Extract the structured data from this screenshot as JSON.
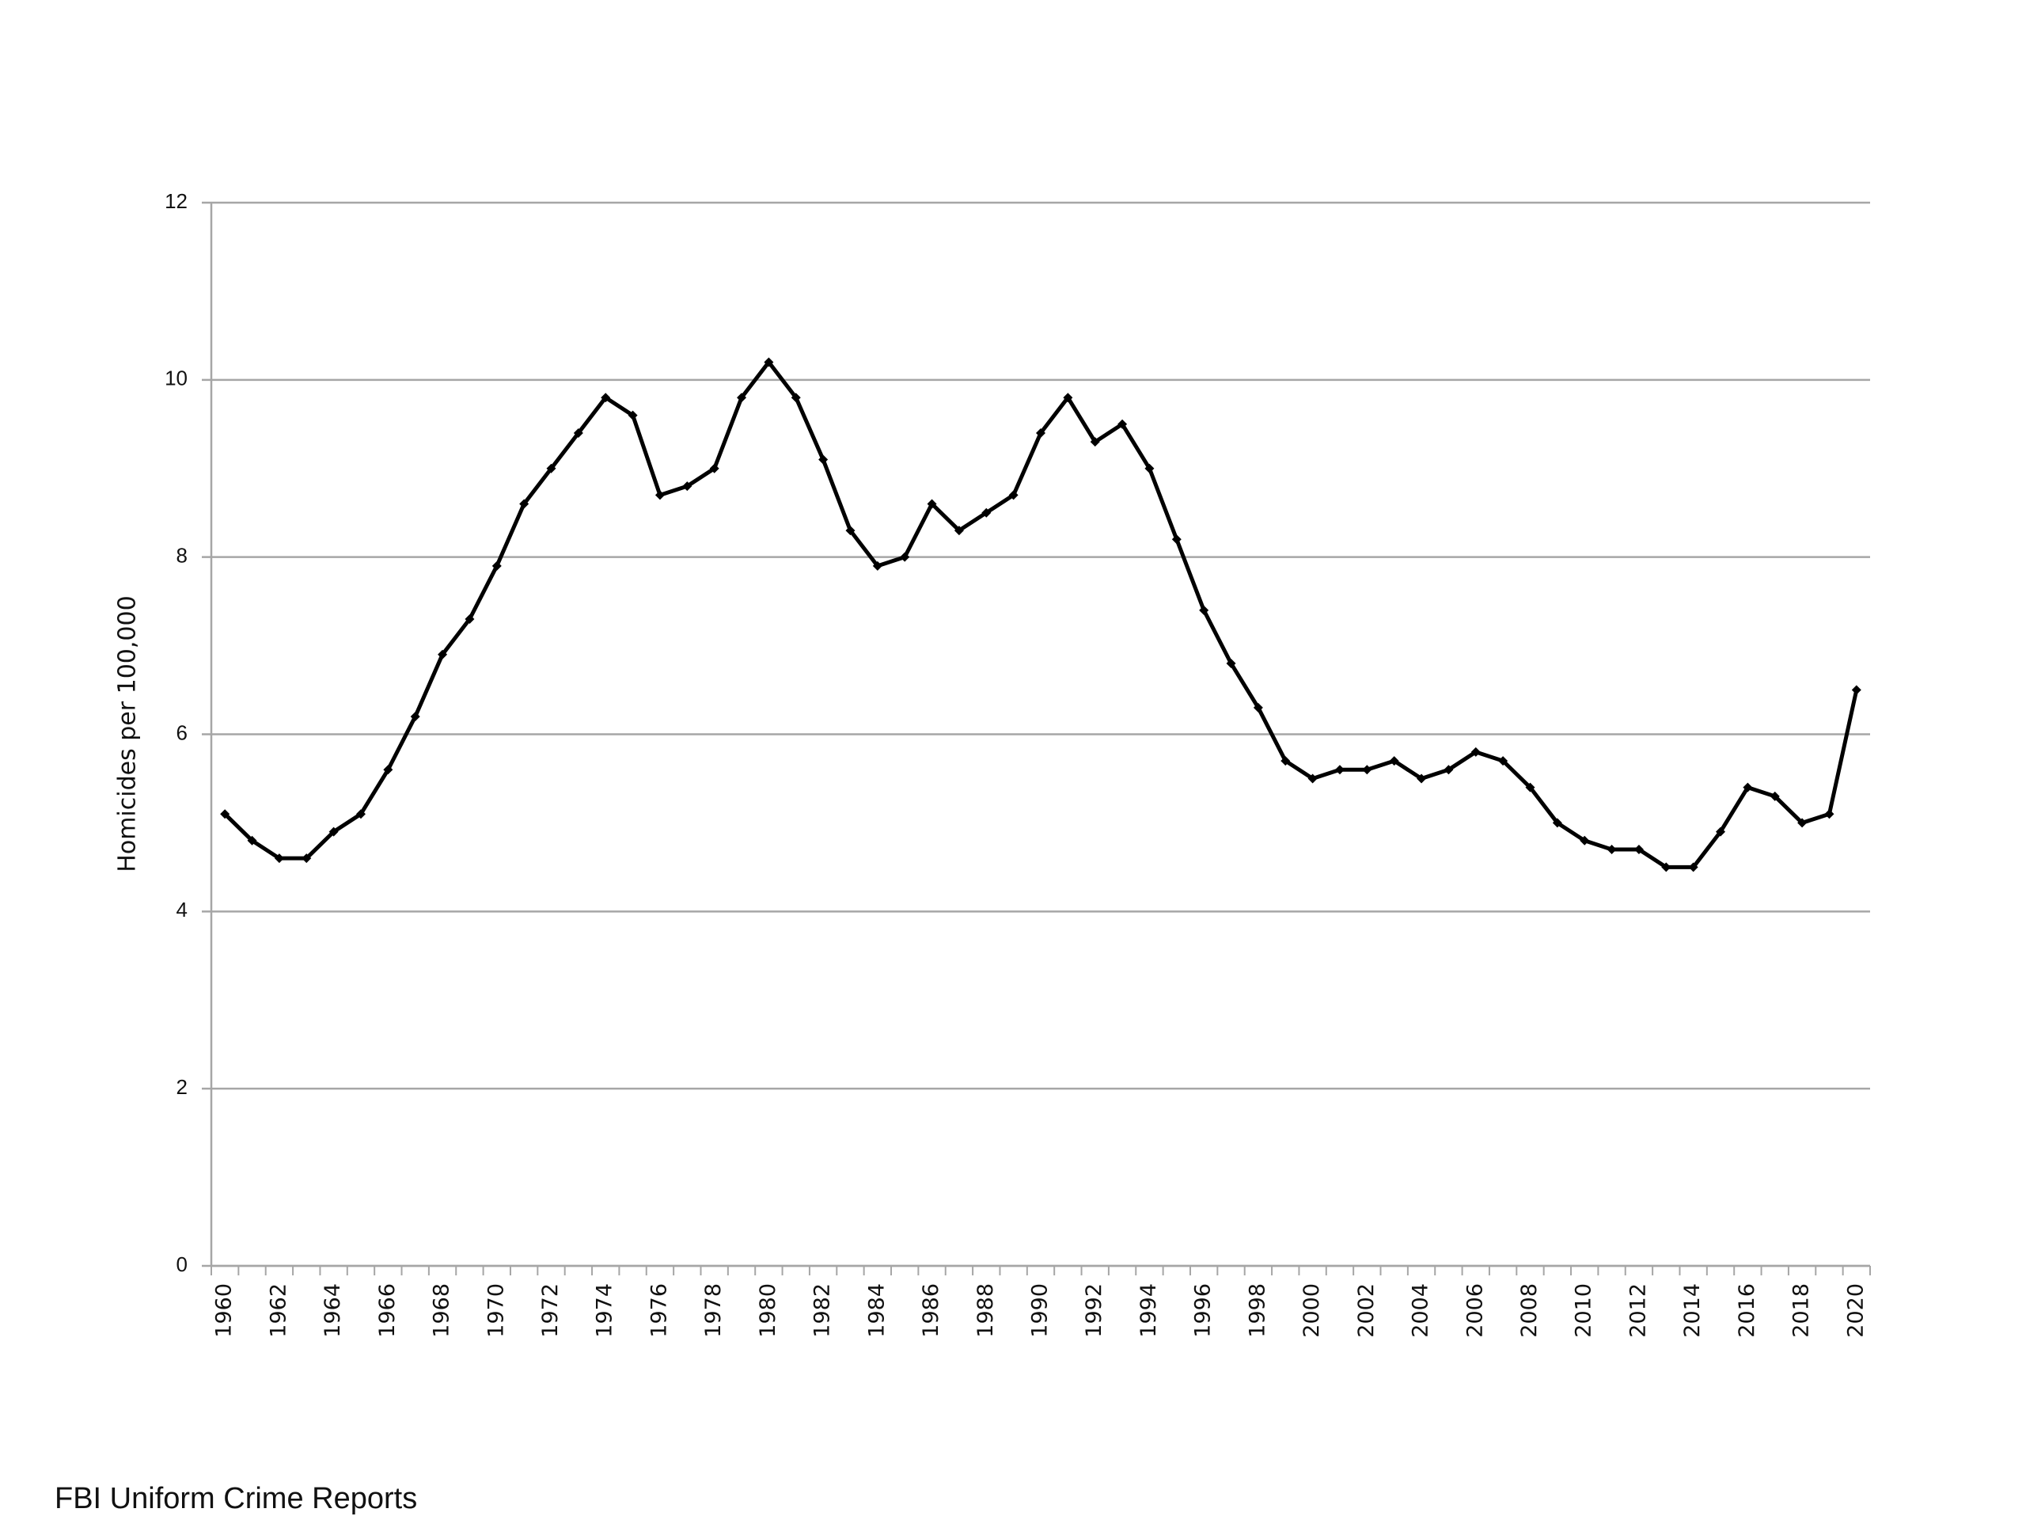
{
  "chart_data": {
    "type": "line",
    "y_label": "Homicides per 100,000",
    "source": "FBI Uniform Crime Reports",
    "categories": [
      "1960",
      null,
      "1962",
      null,
      "1964",
      null,
      "1966",
      null,
      "1968",
      null,
      "1970",
      null,
      "1972",
      null,
      "1974",
      null,
      "1976",
      null,
      "1978",
      null,
      "1980",
      null,
      "1982",
      null,
      "1984",
      null,
      "1986",
      null,
      "1988",
      null,
      "1990",
      null,
      "1992",
      null,
      "1994",
      null,
      "1996",
      null,
      "1998",
      null,
      "2000",
      null,
      "2002",
      null,
      "2004",
      null,
      "2006",
      null,
      "2008",
      null,
      "2010",
      null,
      "2012",
      null,
      "2014",
      null,
      "2016",
      null,
      "2018",
      null,
      "2020"
    ],
    "values": [
      5.1,
      4.8,
      4.6,
      4.6,
      4.9,
      5.1,
      5.6,
      6.2,
      6.9,
      7.3,
      7.9,
      8.6,
      9.0,
      9.4,
      9.8,
      9.6,
      8.7,
      8.8,
      9.0,
      9.8,
      10.2,
      9.8,
      9.1,
      8.3,
      7.9,
      8.0,
      8.6,
      8.3,
      8.5,
      8.7,
      9.4,
      9.8,
      9.3,
      9.5,
      9.0,
      8.2,
      7.4,
      6.8,
      6.3,
      5.7,
      5.5,
      5.6,
      5.6,
      5.7,
      5.5,
      5.6,
      5.8,
      5.7,
      5.4,
      5.0,
      4.8,
      4.7,
      4.7,
      4.5,
      4.5,
      4.9,
      5.4,
      5.3,
      5.0,
      5.1,
      6.5
    ],
    "color": "#000000",
    "ylim": [
      0,
      12
    ],
    "yticks": [
      0,
      2,
      4,
      6,
      8,
      10,
      12
    ],
    "grid": true
  }
}
